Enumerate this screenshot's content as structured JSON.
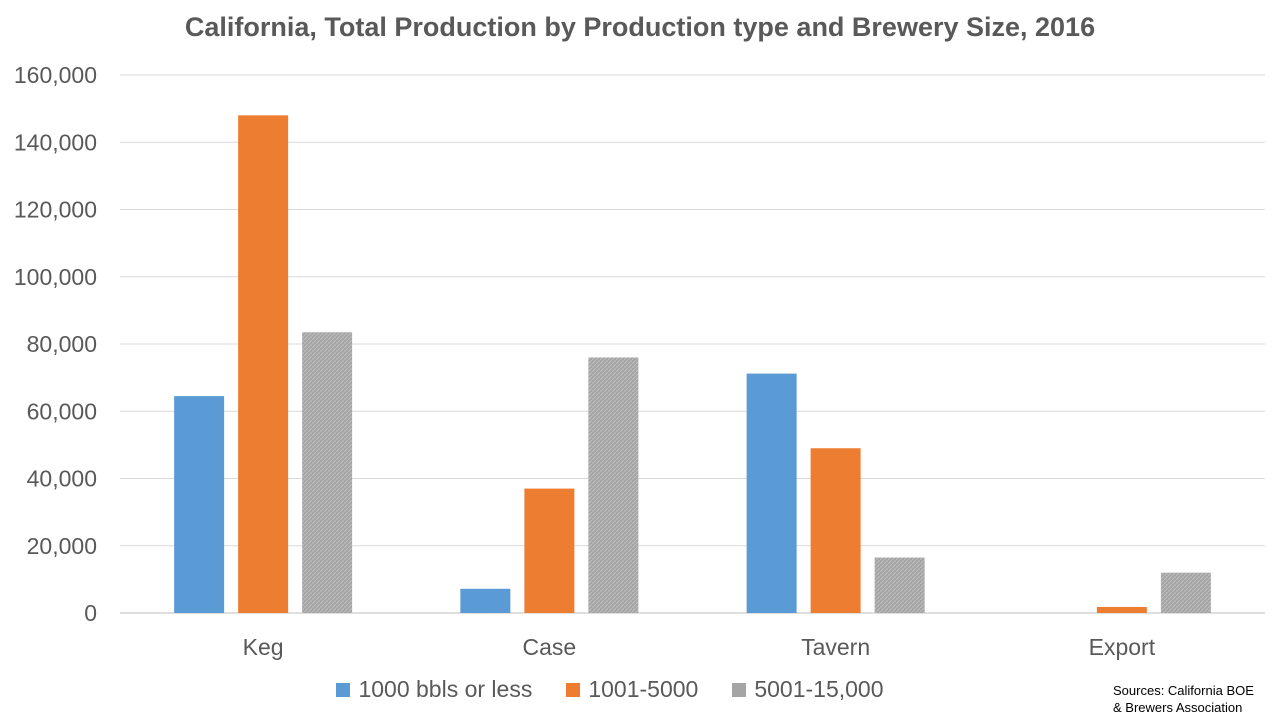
{
  "chart_data": {
    "type": "bar",
    "title": "California, Total Production by Production type and Brewery Size, 2016",
    "categories": [
      "Keg",
      "Case",
      "Tavern",
      "Export"
    ],
    "series": [
      {
        "name": "1000 bbls or less",
        "color": "#5b9bd5",
        "values": [
          64500,
          7200,
          71200,
          0
        ]
      },
      {
        "name": "1001-5000",
        "color": "#ed7d31",
        "values": [
          148000,
          37000,
          49000,
          1800
        ]
      },
      {
        "name": "5001-15,000",
        "color": "#a5a5a5",
        "values": [
          83500,
          76000,
          16500,
          12000
        ]
      }
    ],
    "ylim": [
      0,
      160000
    ],
    "yticks": [
      "0",
      "20,000",
      "40,000",
      "60,000",
      "80,000",
      "100,000",
      "120,000",
      "140,000",
      "160,000"
    ],
    "ytick_values": [
      0,
      20000,
      40000,
      60000,
      80000,
      100000,
      120000,
      140000,
      160000
    ],
    "grid": true,
    "legend_position": "bottom"
  },
  "source_note": {
    "line1": "Sources: California BOE",
    "line2": "& Brewers Association"
  }
}
